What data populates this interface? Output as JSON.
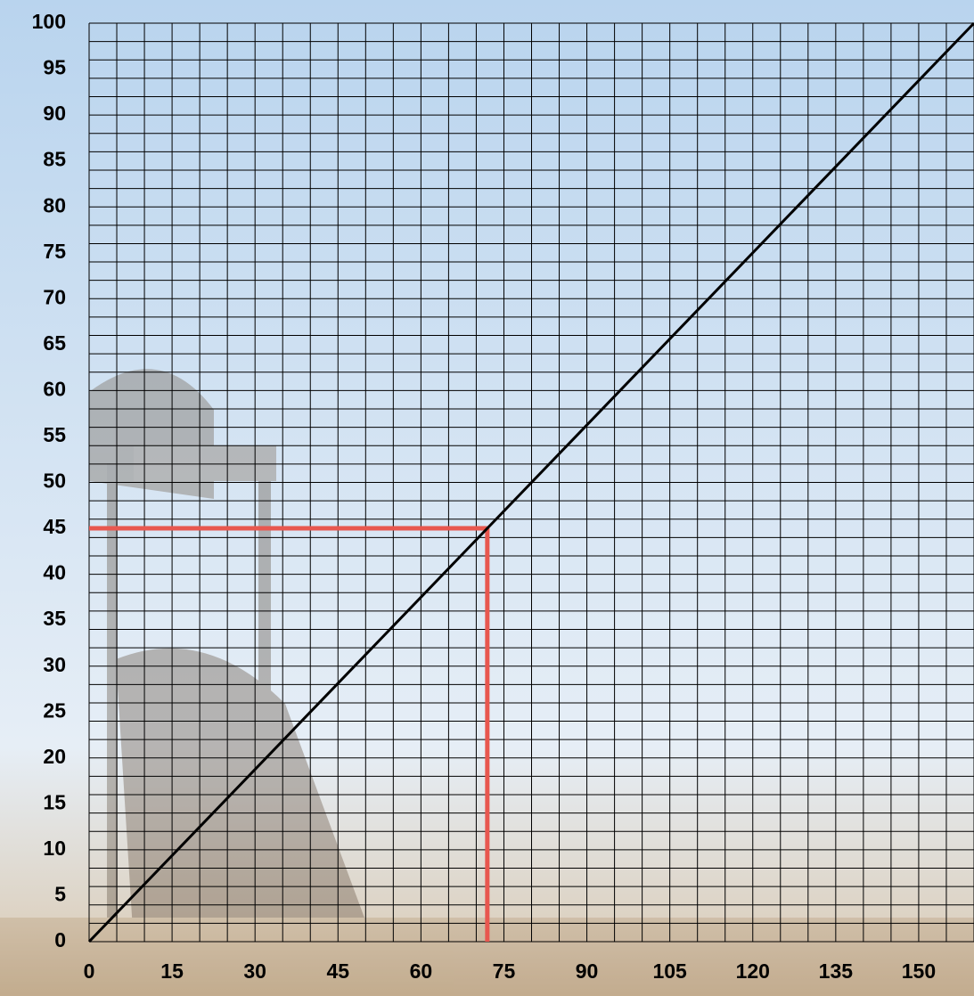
{
  "chart_data": {
    "type": "line",
    "x": [
      0,
      160
    ],
    "series": [
      {
        "color": "#000000",
        "values": [
          0,
          100
        ]
      }
    ],
    "xlim": [
      0,
      160
    ],
    "ylim": [
      0,
      100
    ],
    "xticks": [
      0,
      15,
      30,
      45,
      60,
      75,
      90,
      105,
      120,
      135,
      150
    ],
    "yticks": [
      0,
      5,
      10,
      15,
      20,
      25,
      30,
      35,
      40,
      45,
      50,
      55,
      60,
      65,
      70,
      75,
      80,
      85,
      90,
      95,
      100
    ],
    "grid": true,
    "x_grid": [
      0,
      5,
      10,
      15,
      20,
      25,
      30,
      35,
      40,
      45,
      50,
      55,
      60,
      65,
      70,
      75,
      80,
      85,
      90,
      95,
      100,
      105,
      110,
      115,
      120,
      125,
      130,
      135,
      140,
      145,
      150,
      155,
      160
    ],
    "y_grid": [
      0,
      2,
      4,
      6,
      8,
      10,
      12,
      14,
      16,
      18,
      20,
      22,
      24,
      26,
      28,
      30,
      32,
      34,
      36,
      38,
      40,
      42,
      44,
      46,
      48,
      50,
      52,
      54,
      56,
      58,
      60,
      62,
      64,
      66,
      68,
      70,
      72,
      74,
      76,
      78,
      80,
      82,
      84,
      86,
      88,
      90,
      92,
      94,
      96,
      98,
      100
    ],
    "marker": {
      "x": 72,
      "y": 45,
      "color": "#e8574f"
    }
  }
}
